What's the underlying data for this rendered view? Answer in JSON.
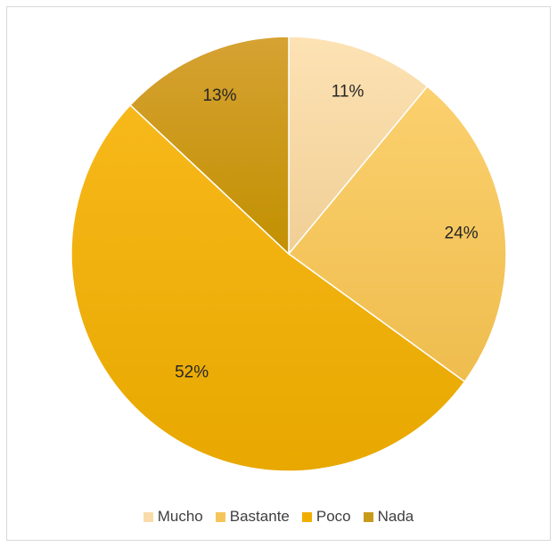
{
  "chart_data": {
    "type": "pie",
    "categories": [
      "Mucho",
      "Bastante",
      "Poco",
      "Nada"
    ],
    "values": [
      11,
      24,
      52,
      13
    ],
    "labels": [
      "11%",
      "24%",
      "52%",
      "13%"
    ],
    "colors": [
      "#f9dcaa",
      "#f6c55a",
      "#f2ae00",
      "#c99a1a"
    ],
    "legend_position": "bottom",
    "title": ""
  }
}
